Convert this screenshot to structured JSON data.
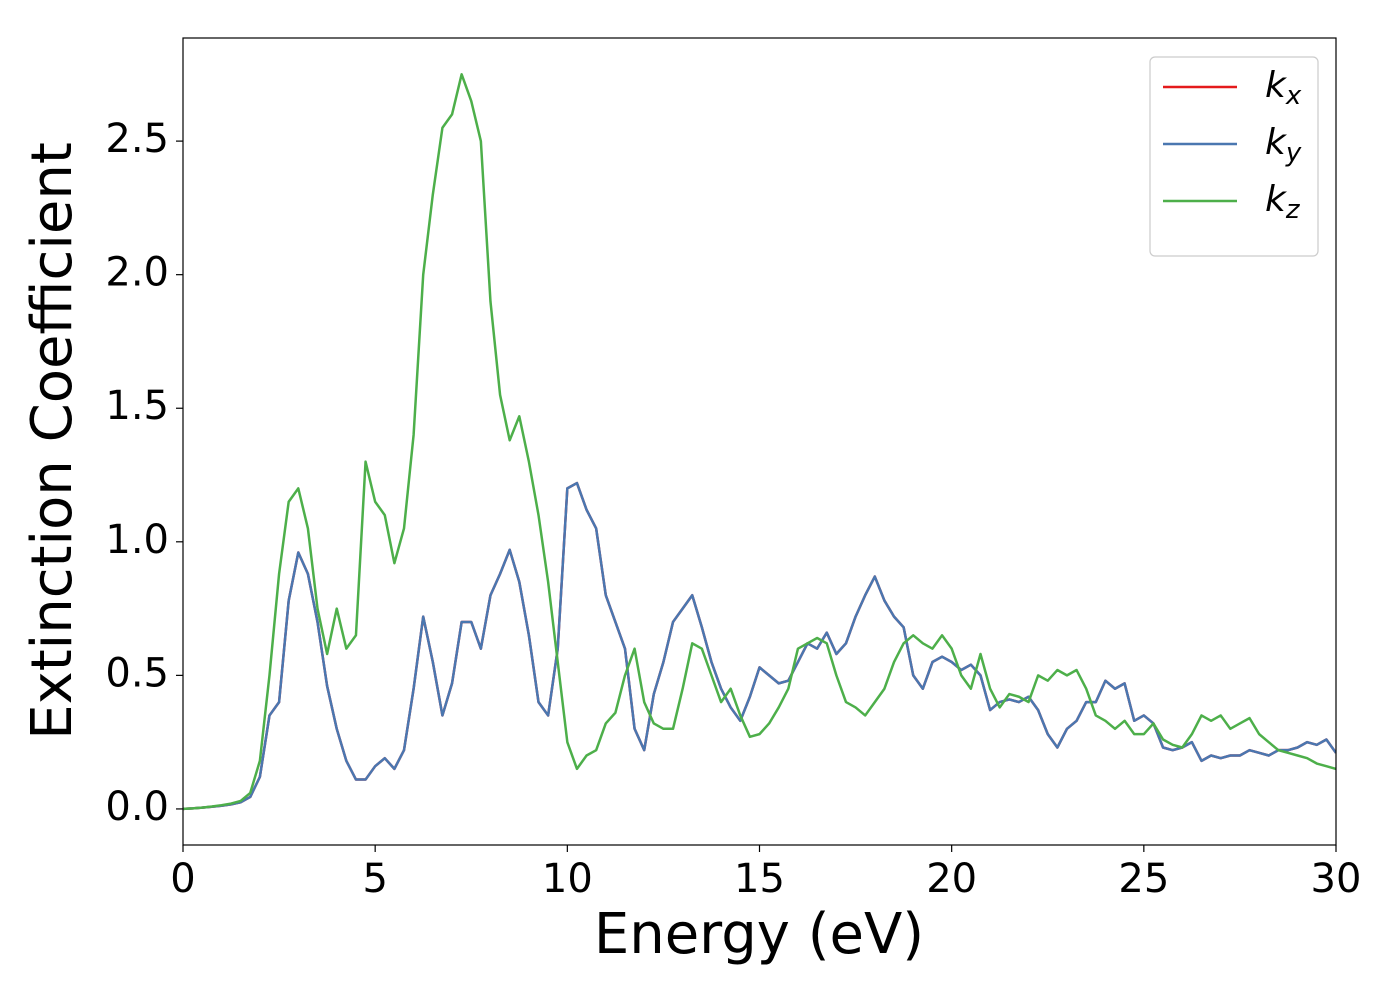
{
  "chart_data": {
    "type": "line",
    "xlabel": "Energy (eV)",
    "ylabel": "Extinction Coefficient",
    "x": [
      0,
      0.25,
      0.5,
      0.75,
      1,
      1.25,
      1.5,
      1.75,
      2,
      2.25,
      2.5,
      2.75,
      3,
      3.25,
      3.5,
      3.75,
      4,
      4.25,
      4.5,
      4.75,
      5,
      5.25,
      5.5,
      5.75,
      6,
      6.25,
      6.5,
      6.75,
      7,
      7.25,
      7.5,
      7.75,
      8,
      8.25,
      8.5,
      8.75,
      9,
      9.25,
      9.5,
      9.75,
      10,
      10.25,
      10.5,
      10.75,
      11,
      11.25,
      11.5,
      11.75,
      12,
      12.25,
      12.5,
      12.75,
      13,
      13.25,
      13.5,
      13.75,
      14,
      14.25,
      14.5,
      14.75,
      15,
      15.25,
      15.5,
      15.75,
      16,
      16.25,
      16.5,
      16.75,
      17,
      17.25,
      17.5,
      17.75,
      18,
      18.25,
      18.5,
      18.75,
      19,
      19.25,
      19.5,
      19.75,
      20,
      20.25,
      20.5,
      20.75,
      21,
      21.25,
      21.5,
      21.75,
      22,
      22.25,
      22.5,
      22.75,
      23,
      23.25,
      23.5,
      23.75,
      24,
      24.25,
      24.5,
      24.75,
      25,
      25.25,
      25.5,
      25.75,
      26,
      26.25,
      26.5,
      26.75,
      27,
      27.25,
      27.5,
      27.75,
      28,
      28.25,
      28.5,
      28.75,
      29,
      29.25,
      29.5,
      29.75,
      30
    ],
    "series": [
      {
        "name": "kx",
        "color": "#e41a1c",
        "values": [
          0,
          0.002,
          0.005,
          0.008,
          0.012,
          0.017,
          0.025,
          0.045,
          0.12,
          0.35,
          0.4,
          0.78,
          0.96,
          0.88,
          0.7,
          0.46,
          0.3,
          0.18,
          0.11,
          0.11,
          0.16,
          0.19,
          0.15,
          0.22,
          0.45,
          0.72,
          0.55,
          0.35,
          0.47,
          0.7,
          0.7,
          0.6,
          0.8,
          0.88,
          0.97,
          0.85,
          0.65,
          0.4,
          0.35,
          0.6,
          1.2,
          1.22,
          1.12,
          1.05,
          0.8,
          0.7,
          0.6,
          0.3,
          0.22,
          0.43,
          0.55,
          0.7,
          0.75,
          0.8,
          0.68,
          0.55,
          0.45,
          0.38,
          0.33,
          0.42,
          0.53,
          0.5,
          0.47,
          0.48,
          0.55,
          0.62,
          0.6,
          0.66,
          0.58,
          0.62,
          0.72,
          0.8,
          0.87,
          0.78,
          0.72,
          0.68,
          0.5,
          0.45,
          0.55,
          0.57,
          0.55,
          0.52,
          0.54,
          0.5,
          0.37,
          0.4,
          0.41,
          0.4,
          0.42,
          0.37,
          0.28,
          0.23,
          0.3,
          0.33,
          0.4,
          0.4,
          0.48,
          0.45,
          0.47,
          0.33,
          0.35,
          0.32,
          0.23,
          0.22,
          0.23,
          0.25,
          0.18,
          0.2,
          0.19,
          0.2,
          0.2,
          0.22,
          0.21,
          0.2,
          0.22,
          0.22,
          0.23,
          0.25,
          0.24,
          0.26,
          0.21
        ]
      },
      {
        "name": "ky",
        "color": "#4a77b0",
        "values": [
          0,
          0.002,
          0.005,
          0.008,
          0.012,
          0.017,
          0.025,
          0.045,
          0.12,
          0.35,
          0.4,
          0.78,
          0.96,
          0.88,
          0.7,
          0.46,
          0.3,
          0.18,
          0.11,
          0.11,
          0.16,
          0.19,
          0.15,
          0.22,
          0.45,
          0.72,
          0.55,
          0.35,
          0.47,
          0.7,
          0.7,
          0.6,
          0.8,
          0.88,
          0.97,
          0.85,
          0.65,
          0.4,
          0.35,
          0.6,
          1.2,
          1.22,
          1.12,
          1.05,
          0.8,
          0.7,
          0.6,
          0.3,
          0.22,
          0.43,
          0.55,
          0.7,
          0.75,
          0.8,
          0.68,
          0.55,
          0.45,
          0.38,
          0.33,
          0.42,
          0.53,
          0.5,
          0.47,
          0.48,
          0.55,
          0.62,
          0.6,
          0.66,
          0.58,
          0.62,
          0.72,
          0.8,
          0.87,
          0.78,
          0.72,
          0.68,
          0.5,
          0.45,
          0.55,
          0.57,
          0.55,
          0.52,
          0.54,
          0.5,
          0.37,
          0.4,
          0.41,
          0.4,
          0.42,
          0.37,
          0.28,
          0.23,
          0.3,
          0.33,
          0.4,
          0.4,
          0.48,
          0.45,
          0.47,
          0.33,
          0.35,
          0.32,
          0.23,
          0.22,
          0.23,
          0.25,
          0.18,
          0.2,
          0.19,
          0.2,
          0.2,
          0.22,
          0.21,
          0.2,
          0.22,
          0.22,
          0.23,
          0.25,
          0.24,
          0.26,
          0.21
        ]
      },
      {
        "name": "kz",
        "color": "#4daf4a",
        "values": [
          0,
          0.002,
          0.005,
          0.009,
          0.014,
          0.02,
          0.03,
          0.06,
          0.18,
          0.5,
          0.88,
          1.15,
          1.2,
          1.05,
          0.75,
          0.58,
          0.75,
          0.6,
          0.65,
          1.3,
          1.15,
          1.1,
          0.92,
          1.05,
          1.4,
          2.0,
          2.3,
          2.55,
          2.6,
          2.75,
          2.65,
          2.5,
          1.9,
          1.55,
          1.38,
          1.47,
          1.3,
          1.1,
          0.85,
          0.55,
          0.25,
          0.15,
          0.2,
          0.22,
          0.32,
          0.36,
          0.5,
          0.6,
          0.4,
          0.32,
          0.3,
          0.3,
          0.45,
          0.62,
          0.6,
          0.5,
          0.4,
          0.45,
          0.35,
          0.27,
          0.28,
          0.32,
          0.38,
          0.45,
          0.6,
          0.62,
          0.64,
          0.62,
          0.5,
          0.4,
          0.38,
          0.35,
          0.4,
          0.45,
          0.55,
          0.62,
          0.65,
          0.62,
          0.6,
          0.65,
          0.6,
          0.5,
          0.45,
          0.58,
          0.45,
          0.38,
          0.43,
          0.42,
          0.4,
          0.5,
          0.48,
          0.52,
          0.5,
          0.52,
          0.45,
          0.35,
          0.33,
          0.3,
          0.33,
          0.28,
          0.28,
          0.32,
          0.26,
          0.24,
          0.23,
          0.28,
          0.35,
          0.33,
          0.35,
          0.3,
          0.32,
          0.34,
          0.28,
          0.25,
          0.22,
          0.21,
          0.2,
          0.19,
          0.17,
          0.16,
          0.15
        ]
      }
    ],
    "xlim": [
      0,
      30
    ],
    "xticks": [
      0,
      5,
      10,
      15,
      20,
      25,
      30
    ],
    "ylim": [
      -0.135,
      2.886
    ],
    "yticks": [
      {
        "value": 0,
        "label": "0.0"
      },
      {
        "value": 0.5,
        "label": "0.5"
      },
      {
        "value": 1,
        "label": "1.0"
      },
      {
        "value": 1.5,
        "label": "1.5"
      },
      {
        "value": 2,
        "label": "2.0"
      },
      {
        "value": 2.5,
        "label": "2.5"
      }
    ],
    "legend": "upper right"
  }
}
